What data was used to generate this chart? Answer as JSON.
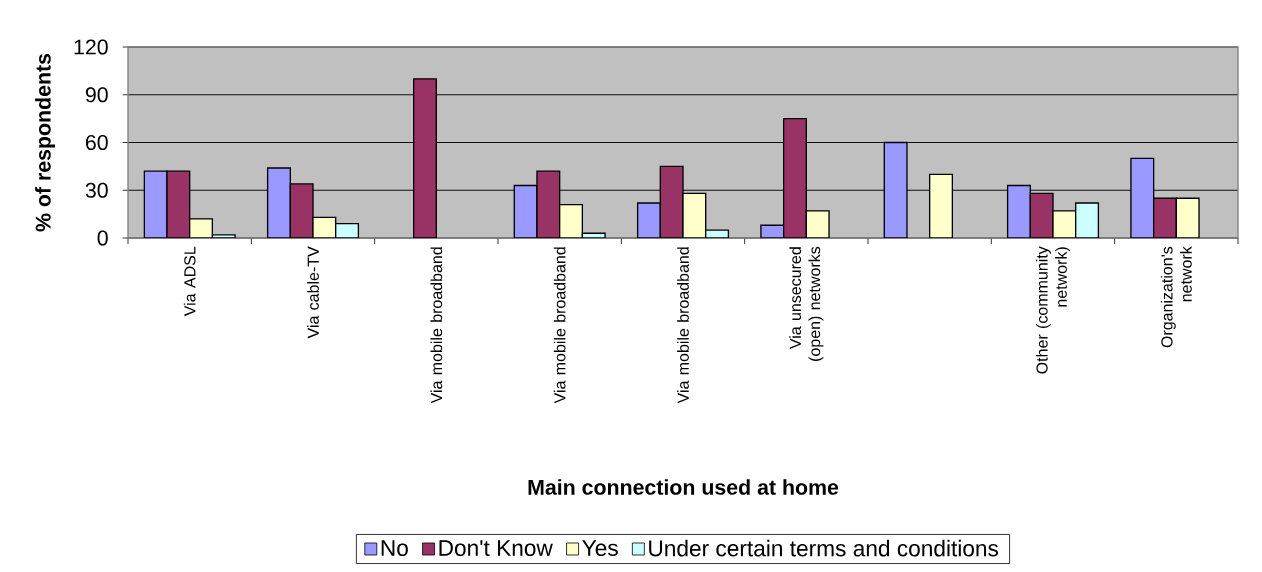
{
  "chart_data": {
    "type": "bar",
    "xlabel": "Main connection used at home",
    "ylabel": "% of respondents",
    "categories": [
      "Via ADSL",
      "Via cable-TV",
      "Via mobile broadband",
      "Via mobile broadband",
      "Via mobile broadband",
      "Via unsecured (open) networks",
      null,
      "Other (community network)",
      "Organization's network"
    ],
    "series": [
      {
        "name": "No",
        "color": "#9999ff",
        "values": [
          42,
          44,
          null,
          33,
          22,
          8,
          60,
          33,
          50
        ]
      },
      {
        "name": "Don't Know",
        "color": "#993366",
        "values": [
          42,
          34,
          100,
          42,
          45,
          75,
          null,
          28,
          25
        ]
      },
      {
        "name": "Yes",
        "color": "#ffffcc",
        "values": [
          12,
          13,
          null,
          21,
          28,
          17,
          40,
          17,
          25
        ]
      },
      {
        "name": "Under certain terms and conditions",
        "color": "#ccffff",
        "values": [
          2,
          9,
          null,
          3,
          5,
          null,
          null,
          22,
          null
        ]
      }
    ],
    "ylim": [
      0,
      120
    ],
    "yticks": [
      0,
      30,
      60,
      90,
      120
    ],
    "grid": "y",
    "legend": "bottom"
  }
}
